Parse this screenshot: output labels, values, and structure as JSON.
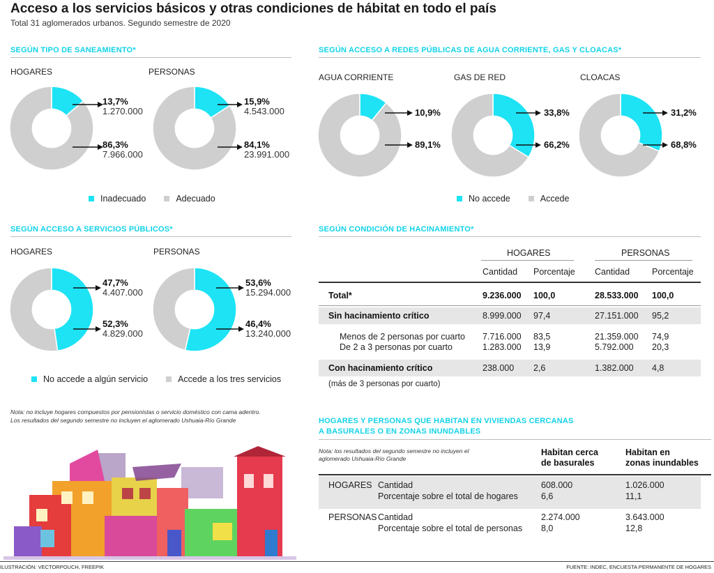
{
  "header": {
    "title": "Acceso a los servicios básicos y otras condiciones de hábitat en todo el país",
    "subtitle": "Total 31 aglomerados urbanos. Segundo semestre de 2020"
  },
  "colors": {
    "cyan": "#1de3f5",
    "gray": "#cfcfcf",
    "band": "#e6e6e6"
  },
  "sections": {
    "saneamiento": "SEGÚN TIPO DE SANEAMIENTO*",
    "redes": "SEGÚN ACCESO A REDES PÚBLICAS DE AGUA CORRIENTE, GAS Y CLOACAS*",
    "servicios": "SEGÚN ACCESO A SERVICIOS PÚBLICOS*",
    "hacinamiento": "SEGÚN CONDICIÓN DE HACINAMIENTO*",
    "basurales_1": "HOGARES Y PERSONAS QUE HABITAN EN VIVIENDAS CERCANAS",
    "basurales_2": "A BASURALES O EN ZONAS INUNDABLES"
  },
  "chart_data": [
    {
      "type": "pie",
      "group": "saneamiento",
      "label": "HOGARES",
      "slices": [
        {
          "name": "Inadecuado",
          "pct": 13.7,
          "pct_label": "13,7%",
          "value_label": "1.270.000"
        },
        {
          "name": "Adecuado",
          "pct": 86.3,
          "pct_label": "86,3%",
          "value_label": "7.966.000"
        }
      ]
    },
    {
      "type": "pie",
      "group": "saneamiento",
      "label": "PERSONAS",
      "slices": [
        {
          "name": "Inadecuado",
          "pct": 15.9,
          "pct_label": "15,9%",
          "value_label": "4.543.000"
        },
        {
          "name": "Adecuado",
          "pct": 84.1,
          "pct_label": "84,1%",
          "value_label": "23.991.000"
        }
      ]
    },
    {
      "type": "pie",
      "group": "redes",
      "label": "AGUA CORRIENTE",
      "slices": [
        {
          "name": "No accede",
          "pct": 10.9,
          "pct_label": "10,9%",
          "value_label": ""
        },
        {
          "name": "Accede",
          "pct": 89.1,
          "pct_label": "89,1%",
          "value_label": ""
        }
      ]
    },
    {
      "type": "pie",
      "group": "redes",
      "label": "GAS DE RED",
      "slices": [
        {
          "name": "No accede",
          "pct": 33.8,
          "pct_label": "33,8%",
          "value_label": ""
        },
        {
          "name": "Accede",
          "pct": 66.2,
          "pct_label": "66,2%",
          "value_label": ""
        }
      ]
    },
    {
      "type": "pie",
      "group": "redes",
      "label": "CLOACAS",
      "slices": [
        {
          "name": "No accede",
          "pct": 31.2,
          "pct_label": "31,2%",
          "value_label": ""
        },
        {
          "name": "Accede",
          "pct": 68.8,
          "pct_label": "68,8%",
          "value_label": ""
        }
      ]
    },
    {
      "type": "pie",
      "group": "servicios",
      "label": "HOGARES",
      "slices": [
        {
          "name": "No accede a algún servicio",
          "pct": 47.7,
          "pct_label": "47,7%",
          "value_label": "4.407.000"
        },
        {
          "name": "Accede a los tres servicios",
          "pct": 52.3,
          "pct_label": "52,3%",
          "value_label": "4.829.000"
        }
      ]
    },
    {
      "type": "pie",
      "group": "servicios",
      "label": "PERSONAS",
      "slices": [
        {
          "name": "No accede a algún servicio",
          "pct": 53.6,
          "pct_label": "53,6%",
          "value_label": "15.294.000"
        },
        {
          "name": "Accede a los tres servicios",
          "pct": 46.4,
          "pct_label": "46,4%",
          "value_label": "13.240.000"
        }
      ]
    },
    {
      "type": "table",
      "group": "hacinamiento",
      "col_groups": [
        "HOGARES",
        "PERSONAS"
      ],
      "columns": [
        "Cantidad",
        "Porcentaje",
        "Cantidad",
        "Porcentaje"
      ],
      "rows": [
        {
          "label": "Total*",
          "values": [
            "9.236.000",
            "100,0",
            "28.533.000",
            "100,0"
          ]
        },
        {
          "label": "Sin hacinamiento crítico",
          "values": [
            "8.999.000",
            "97,4",
            "27.151.000",
            "95,2"
          ]
        },
        {
          "label": "Menos de 2 personas por cuarto",
          "values": [
            "7.716.000",
            "83,5",
            "21.359.000",
            "74,9"
          ]
        },
        {
          "label": "De 2 a 3 personas por cuarto",
          "values": [
            "1.283.000",
            "13,9",
            "5.792.000",
            "20,3"
          ]
        },
        {
          "label": "Con hacinamiento crítico",
          "values": [
            "238.000",
            "2,6",
            "1.382.000",
            "4,8"
          ]
        }
      ],
      "footnote": "(más de 3 personas por cuarto)"
    },
    {
      "type": "table",
      "group": "basurales",
      "columns": [
        "Habitan cerca de basurales",
        "Habitan en zonas inundables"
      ],
      "column_lines": [
        [
          "Habitan cerca",
          "de basurales"
        ],
        [
          "Habitan en",
          "zonas inundables"
        ]
      ],
      "rows": [
        {
          "group": "HOGARES",
          "label": "Cantidad",
          "values": [
            "608.000",
            "1.026.000"
          ]
        },
        {
          "group": "",
          "label": "Porcentaje sobre el total de hogares",
          "values": [
            "6,6",
            "11,1"
          ]
        },
        {
          "group": "PERSONAS",
          "label": "Cantidad",
          "values": [
            "2.274.000",
            "3.643.000"
          ]
        },
        {
          "group": "",
          "label": "Porcentaje sobre el total de personas",
          "values": [
            "8,0",
            "12,8"
          ]
        }
      ]
    }
  ],
  "legends": {
    "saneamiento": [
      "Inadecuado",
      "Adecuado"
    ],
    "redes": [
      "No accede",
      "Accede"
    ],
    "servicios": [
      "No accede a algún servicio",
      "Accede a los tres servicios"
    ]
  },
  "notes": {
    "left_1": "Nota: no incluye hogares compuestos por pensionistas o servicio doméstico con cama adentro.",
    "left_2": "Los resultados del segundo semestre no incluyen el aglomerado Ushuaia-Río Grande",
    "right_1": "Nota: los resultados del segundo semestre no incluyen el",
    "right_2": "aglomerado Ushuaia-Río Grande"
  },
  "footer": {
    "left": "ILUSTRACIÓN: VECTORPOUCH, FREEPIK",
    "right": "FUENTE: INDEC, ENCUESTA PERMANENTE DE HOGARES"
  }
}
